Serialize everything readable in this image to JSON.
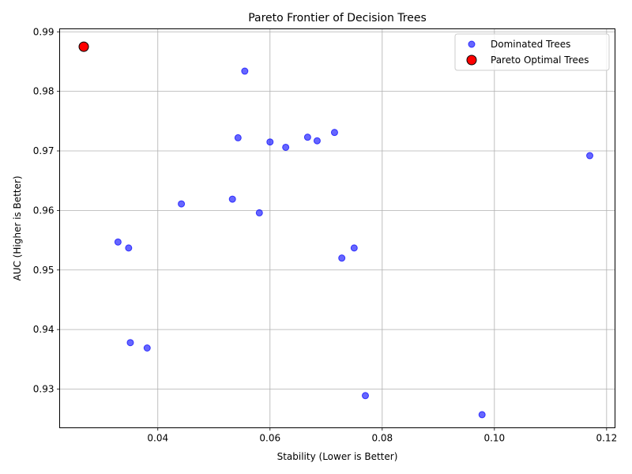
{
  "chart_data": {
    "type": "scatter",
    "title": "Pareto Frontier of Decision Trees",
    "xlabel": "Stability (Lower is Better)",
    "ylabel": "AUC (Higher is Better)",
    "xlim": [
      0.0225,
      0.1215
    ],
    "ylim": [
      0.9235,
      0.9905
    ],
    "xticks": [
      0.04,
      0.06,
      0.08,
      0.1,
      0.12
    ],
    "xtick_labels": [
      "0.04",
      "0.06",
      "0.08",
      "0.10",
      "0.12"
    ],
    "yticks": [
      0.93,
      0.94,
      0.95,
      0.96,
      0.97,
      0.98,
      0.99
    ],
    "ytick_labels": [
      "0.93",
      "0.94",
      "0.95",
      "0.96",
      "0.97",
      "0.98",
      "0.99"
    ],
    "grid": true,
    "legend_position": "top-right",
    "series": [
      {
        "name": "Dominated Trees",
        "color": "#0000ff",
        "points": [
          {
            "x": 0.0555,
            "y": 0.9834
          },
          {
            "x": 0.0543,
            "y": 0.9722
          },
          {
            "x": 0.06,
            "y": 0.9715
          },
          {
            "x": 0.0628,
            "y": 0.9706
          },
          {
            "x": 0.0667,
            "y": 0.9723
          },
          {
            "x": 0.0684,
            "y": 0.9717
          },
          {
            "x": 0.0715,
            "y": 0.9731
          },
          {
            "x": 0.117,
            "y": 0.9692
          },
          {
            "x": 0.0442,
            "y": 0.9611
          },
          {
            "x": 0.0533,
            "y": 0.9619
          },
          {
            "x": 0.0581,
            "y": 0.9596
          },
          {
            "x": 0.0329,
            "y": 0.9547
          },
          {
            "x": 0.0348,
            "y": 0.9537
          },
          {
            "x": 0.075,
            "y": 0.9537
          },
          {
            "x": 0.0728,
            "y": 0.952
          },
          {
            "x": 0.0351,
            "y": 0.9378
          },
          {
            "x": 0.0381,
            "y": 0.9369
          },
          {
            "x": 0.077,
            "y": 0.9289
          },
          {
            "x": 0.0978,
            "y": 0.9257
          }
        ]
      },
      {
        "name": "Pareto Optimal Trees",
        "color": "#ff0000",
        "points": [
          {
            "x": 0.0268,
            "y": 0.9875
          }
        ]
      }
    ]
  }
}
